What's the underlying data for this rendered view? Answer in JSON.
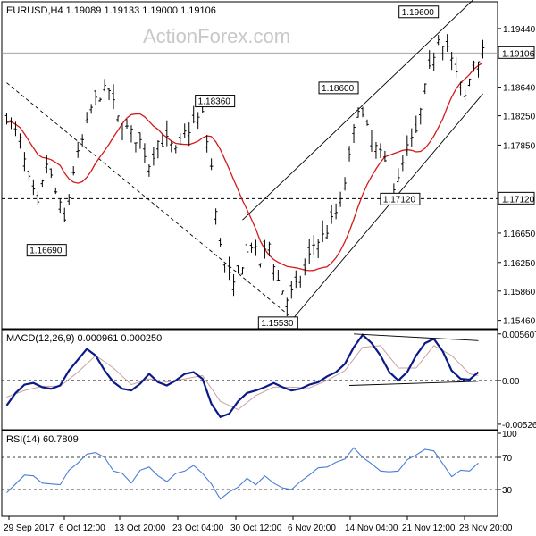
{
  "chart_data": [
    {
      "type": "ohlc",
      "title": "EURUSD,H4",
      "ohlc_header": [
        "1.19089",
        "1.19133",
        "1.19000",
        "1.19106"
      ],
      "watermark": "ActionForex.com",
      "ylim": [
        1.1537,
        1.1978
      ],
      "y_ticks": [
        "1.19440",
        "1.18640",
        "1.18250",
        "1.17850",
        "1.16650",
        "1.16250",
        "1.15860",
        "1.15460"
      ],
      "current_price": "1.19106",
      "x_ticks": [
        "29 Sep 2017",
        "6 Oct 12:00",
        "13 Oct 20:00",
        "23 Oct 04:00",
        "30 Oct 12:00",
        "6 Nov 20:00",
        "14 Nov 04:00",
        "21 Nov 12:00",
        "28 Nov 20:00"
      ],
      "level_labels": [
        {
          "label": "1.19600",
          "bar": 97,
          "value": 1.196
        },
        {
          "label": "1.18600",
          "bar": 79,
          "value": 1.186
        },
        {
          "label": "1.18360",
          "bar": 44,
          "value": 1.1836
        },
        {
          "label": "1.17120",
          "bar": 86,
          "value": 1.1712
        },
        {
          "label": "1.16690",
          "bar": 13,
          "value": 1.1669
        },
        {
          "label": "1.15530",
          "bar": 63,
          "value": 1.1553
        }
      ],
      "horizontal_line": {
        "label": "1.17120",
        "value": 1.1712
      },
      "trend_lines": [
        {
          "from": [
            0,
            1.187
          ],
          "to": [
            64,
            1.155
          ]
        },
        {
          "from": [
            53,
            1.1683
          ],
          "to": [
            106,
            1.199
          ]
        },
        {
          "from": [
            64,
            1.1546
          ],
          "to": [
            107,
            1.1855
          ]
        }
      ],
      "moving_average": "55-period SMA (red)",
      "price_path": [
        [
          0,
          1.1825
        ],
        [
          3,
          1.179
        ],
        [
          5,
          1.1735
        ],
        [
          7,
          1.17
        ],
        [
          9,
          1.176
        ],
        [
          11,
          1.172
        ],
        [
          13,
          1.168
        ],
        [
          15,
          1.175
        ],
        [
          17,
          1.179
        ],
        [
          19,
          1.1835
        ],
        [
          21,
          1.1855
        ],
        [
          23,
          1.186
        ],
        [
          25,
          1.182
        ],
        [
          28,
          1.18
        ],
        [
          30,
          1.179
        ],
        [
          32,
          1.176
        ],
        [
          34,
          1.179
        ],
        [
          36,
          1.179
        ],
        [
          38,
          1.1775
        ],
        [
          40,
          1.18
        ],
        [
          42,
          1.1815
        ],
        [
          44,
          1.1826
        ],
        [
          46,
          1.1755
        ],
        [
          47,
          1.169
        ],
        [
          49,
          1.162
        ],
        [
          51,
          1.159
        ],
        [
          53,
          1.1625
        ],
        [
          55,
          1.165
        ],
        [
          57,
          1.1625
        ],
        [
          59,
          1.165
        ],
        [
          61,
          1.16
        ],
        [
          63,
          1.1575
        ],
        [
          65,
          1.159
        ],
        [
          67,
          1.1615
        ],
        [
          69,
          1.165
        ],
        [
          71,
          1.166
        ],
        [
          73,
          1.168
        ],
        [
          75,
          1.1705
        ],
        [
          77,
          1.1765
        ],
        [
          79,
          1.184
        ],
        [
          81,
          1.1805
        ],
        [
          83,
          1.178
        ],
        [
          85,
          1.176
        ],
        [
          86,
          1.1722
        ],
        [
          88,
          1.1735
        ],
        [
          90,
          1.178
        ],
        [
          92,
          1.18
        ],
        [
          94,
          1.186
        ],
        [
          96,
          1.191
        ],
        [
          97,
          1.1935
        ],
        [
          99,
          1.192
        ],
        [
          101,
          1.188
        ],
        [
          103,
          1.185
        ],
        [
          105,
          1.19
        ],
        [
          107,
          1.1911
        ]
      ]
    },
    {
      "type": "line",
      "title": "MACD(12,26,9) 0.000961 0.000250",
      "y_ticks": [
        "0.005607",
        "0.00",
        "-0.005267"
      ],
      "ylim": [
        -0.0056,
        0.0058
      ],
      "series": [
        {
          "name": "MACD",
          "color": "#0a1a8a",
          "values": [
            [
              0,
              -0.003
            ],
            [
              2,
              -0.0015
            ],
            [
              4,
              -0.0005
            ],
            [
              6,
              -0.0003
            ],
            [
              8,
              -0.0008
            ],
            [
              10,
              -0.001
            ],
            [
              12,
              -0.0006
            ],
            [
              14,
              0.0012
            ],
            [
              16,
              0.0025
            ],
            [
              18,
              0.0038
            ],
            [
              20,
              0.003
            ],
            [
              22,
              0.0012
            ],
            [
              24,
              -0.0002
            ],
            [
              26,
              -0.001
            ],
            [
              28,
              -0.0012
            ],
            [
              30,
              -0.0004
            ],
            [
              32,
              0.0008
            ],
            [
              34,
              -0.0002
            ],
            [
              36,
              -0.0006
            ],
            [
              38,
              0.0
            ],
            [
              40,
              0.0008
            ],
            [
              42,
              0.001
            ],
            [
              44,
              0.0002
            ],
            [
              46,
              -0.0028
            ],
            [
              48,
              -0.0044
            ],
            [
              50,
              -0.004
            ],
            [
              52,
              -0.0025
            ],
            [
              54,
              -0.0015
            ],
            [
              56,
              -0.0012
            ],
            [
              58,
              -0.0008
            ],
            [
              60,
              -0.0003
            ],
            [
              62,
              -0.0008
            ],
            [
              64,
              -0.0012
            ],
            [
              66,
              -0.001
            ],
            [
              68,
              -0.0005
            ],
            [
              70,
              -0.0002
            ],
            [
              72,
              0.0005
            ],
            [
              74,
              0.001
            ],
            [
              76,
              0.002
            ],
            [
              78,
              0.004
            ],
            [
              80,
              0.0055
            ],
            [
              82,
              0.0045
            ],
            [
              84,
              0.003
            ],
            [
              86,
              0.001
            ],
            [
              88,
              0.0
            ],
            [
              90,
              0.001
            ],
            [
              92,
              0.003
            ],
            [
              94,
              0.0045
            ],
            [
              96,
              0.005
            ],
            [
              98,
              0.0035
            ],
            [
              100,
              0.0012
            ],
            [
              102,
              0.0002
            ],
            [
              104,
              0.0001
            ],
            [
              106,
              0.001
            ]
          ]
        },
        {
          "name": "Signal",
          "color": "#c9a0a0",
          "values": [
            [
              0,
              -0.002
            ],
            [
              4,
              -0.0012
            ],
            [
              8,
              -0.0007
            ],
            [
              12,
              -0.0007
            ],
            [
              16,
              0.001
            ],
            [
              20,
              0.003
            ],
            [
              24,
              0.0015
            ],
            [
              28,
              -0.0005
            ],
            [
              32,
              0.0002
            ],
            [
              36,
              -0.0002
            ],
            [
              40,
              0.0002
            ],
            [
              44,
              0.0006
            ],
            [
              48,
              -0.0025
            ],
            [
              52,
              -0.0035
            ],
            [
              56,
              -0.0018
            ],
            [
              60,
              -0.0008
            ],
            [
              64,
              -0.0008
            ],
            [
              68,
              -0.0009
            ],
            [
              72,
              0.0
            ],
            [
              76,
              0.0012
            ],
            [
              80,
              0.004
            ],
            [
              84,
              0.0042
            ],
            [
              88,
              0.0015
            ],
            [
              92,
              0.0015
            ],
            [
              96,
              0.0042
            ],
            [
              100,
              0.003
            ],
            [
              104,
              0.0008
            ],
            [
              106,
              0.0006
            ]
          ]
        }
      ],
      "trend_lines": [
        {
          "from": [
            78,
            0.0056
          ],
          "to": [
            106,
            0.0048
          ]
        },
        {
          "from": [
            77,
            -0.0006
          ],
          "to": [
            106,
            -0.0001
          ]
        }
      ]
    },
    {
      "type": "line",
      "title": "RSI(14) 60.7809",
      "y_ticks": [
        "100",
        "70",
        "30",
        "0"
      ],
      "ylim": [
        0,
        100
      ],
      "levels": [
        70,
        30
      ],
      "series": [
        {
          "name": "RSI",
          "color": "#4a7ed6",
          "values": [
            [
              0,
              28
            ],
            [
              2,
              35
            ],
            [
              4,
              50
            ],
            [
              6,
              45
            ],
            [
              8,
              40
            ],
            [
              10,
              35
            ],
            [
              12,
              38
            ],
            [
              14,
              52
            ],
            [
              16,
              65
            ],
            [
              18,
              72
            ],
            [
              20,
              78
            ],
            [
              22,
              68
            ],
            [
              24,
              55
            ],
            [
              26,
              48
            ],
            [
              28,
              40
            ],
            [
              30,
              52
            ],
            [
              32,
              60
            ],
            [
              34,
              45
            ],
            [
              36,
              42
            ],
            [
              38,
              48
            ],
            [
              40,
              55
            ],
            [
              42,
              58
            ],
            [
              44,
              52
            ],
            [
              46,
              35
            ],
            [
              48,
              20
            ],
            [
              50,
              25
            ],
            [
              52,
              35
            ],
            [
              54,
              42
            ],
            [
              56,
              38
            ],
            [
              58,
              45
            ],
            [
              60,
              40
            ],
            [
              62,
              30
            ],
            [
              64,
              32
            ],
            [
              66,
              38
            ],
            [
              68,
              50
            ],
            [
              70,
              55
            ],
            [
              72,
              60
            ],
            [
              74,
              62
            ],
            [
              76,
              70
            ],
            [
              78,
              80
            ],
            [
              80,
              72
            ],
            [
              82,
              60
            ],
            [
              84,
              55
            ],
            [
              86,
              50
            ],
            [
              88,
              55
            ],
            [
              90,
              65
            ],
            [
              92,
              75
            ],
            [
              94,
              78
            ],
            [
              96,
              80
            ],
            [
              98,
              60
            ],
            [
              100,
              48
            ],
            [
              102,
              52
            ],
            [
              104,
              55
            ],
            [
              106,
              61
            ]
          ]
        }
      ]
    }
  ]
}
